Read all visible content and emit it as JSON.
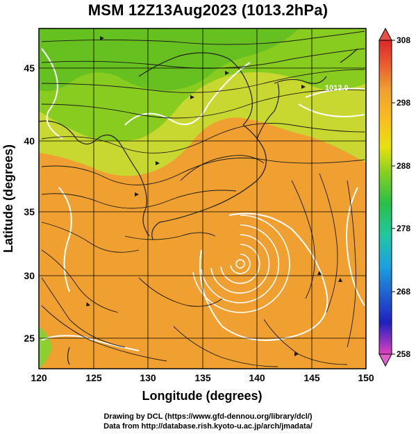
{
  "title": "MSM 12Z13Aug2023 (1013.2hPa)",
  "axes": {
    "xlabel": "Longitude (degrees)",
    "ylabel": "Latitude  (degrees)",
    "xticks": [
      "120",
      "125",
      "130",
      "135",
      "140",
      "145",
      "150"
    ],
    "yticks": [
      "25",
      "30",
      "35",
      "40",
      "45"
    ],
    "xlim": [
      120,
      150
    ],
    "ylim": [
      22.4,
      47.6
    ]
  },
  "colorbar": {
    "labels": [
      "308",
      "298",
      "288",
      "278",
      "268",
      "258"
    ],
    "range": [
      258,
      308
    ],
    "colors": [
      "#e040c0",
      "#2020c0",
      "#1ea0e0",
      "#20c8a0",
      "#28c048",
      "#88d020",
      "#e8e010",
      "#f8c020",
      "#f0a030",
      "#e85030",
      "#d82828"
    ]
  },
  "contour_label": "1012.0",
  "typhoon_center": {
    "lon": 138.5,
    "lat": 30.9
  },
  "credits": {
    "line1": "Drawing by DCL (https://www.gfd-dennou.org/library/dcl/)",
    "line2": "Data from http://database.rish.kyoto-u.ac.jp/arch/jmadata/"
  }
}
